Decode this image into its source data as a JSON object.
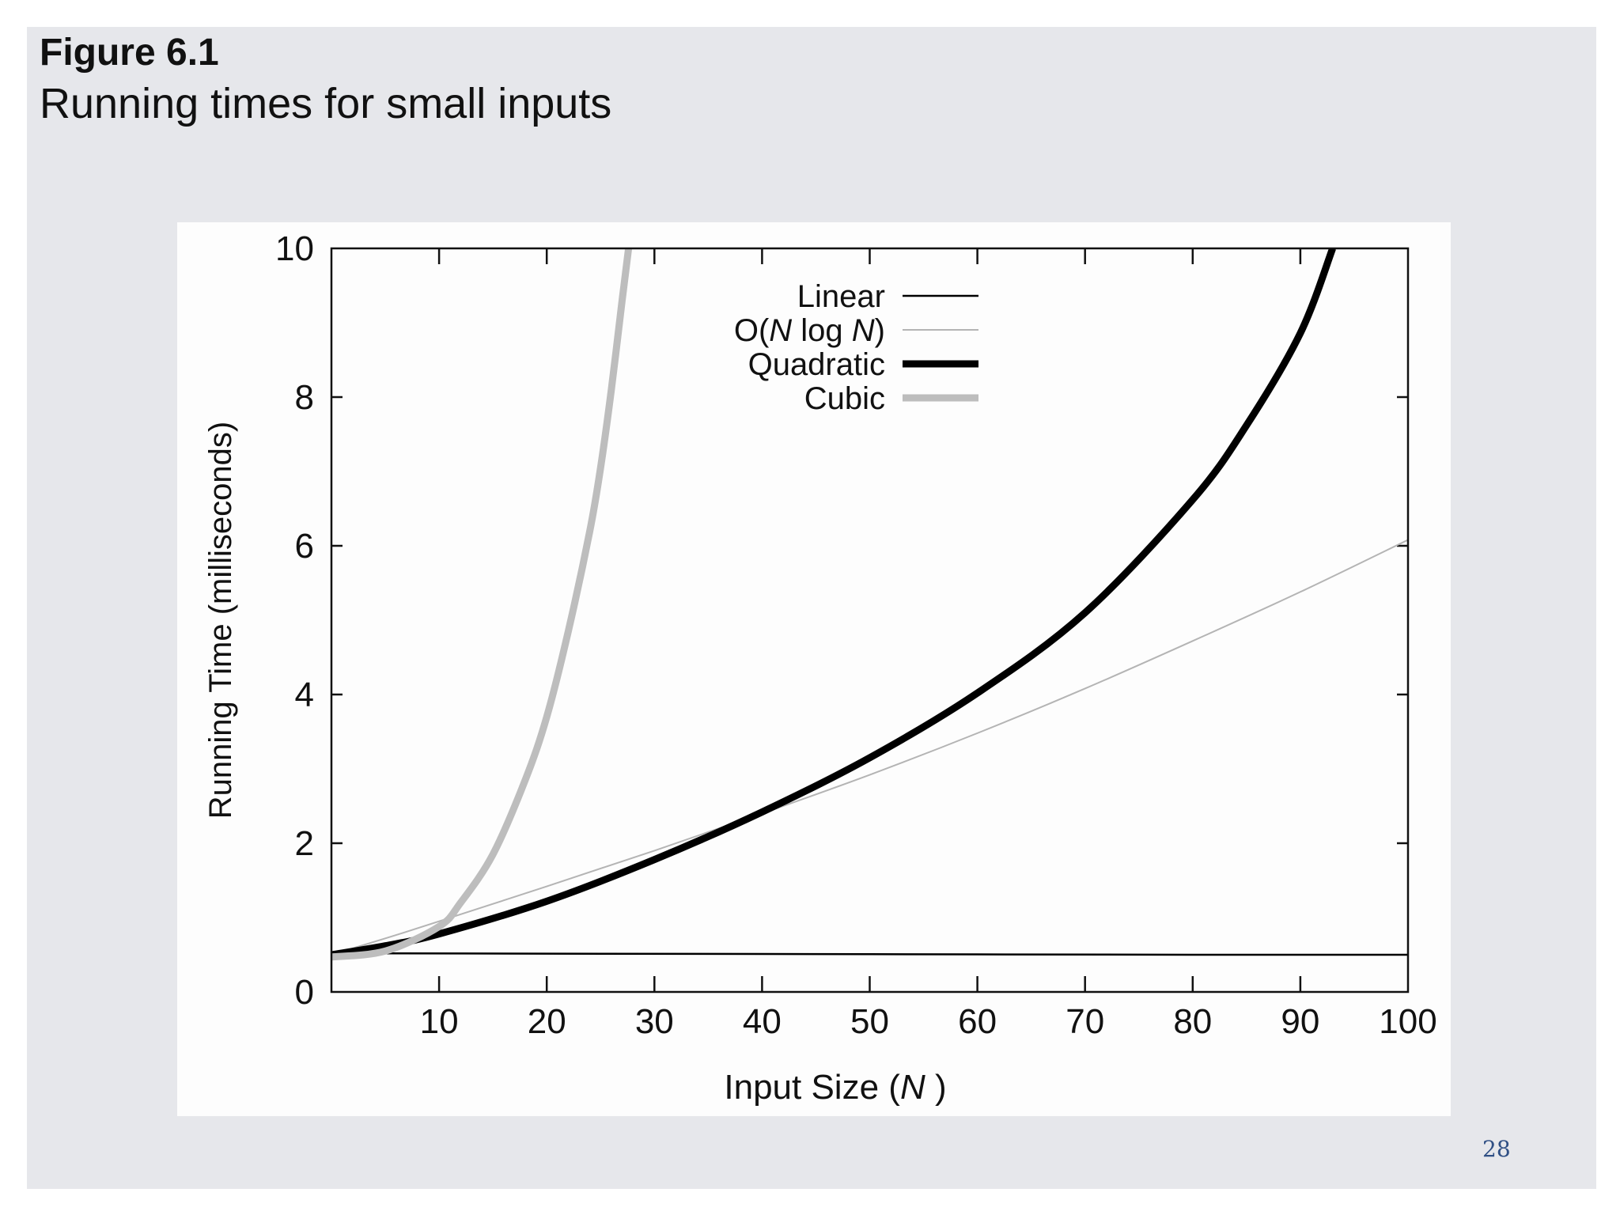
{
  "slide": {
    "figure_label": "Figure 6.1",
    "caption": "Running times for small inputs",
    "page_number": "28"
  },
  "chart_data": {
    "type": "line",
    "title": "",
    "xlabel": "Input Size (N )",
    "ylabel": "Running Time (milliseconds)",
    "xlim": [
      0,
      100
    ],
    "ylim": [
      0,
      10
    ],
    "x_ticks": [
      10,
      20,
      30,
      40,
      50,
      60,
      70,
      80,
      90,
      100
    ],
    "x_tick_labels": [
      "10",
      "20",
      "30",
      "40",
      "50",
      "60",
      "70",
      "80",
      "90",
      "100"
    ],
    "y_ticks": [
      0,
      2,
      4,
      6,
      8,
      10
    ],
    "y_tick_labels": [
      "0",
      "2",
      "4",
      "6",
      "8",
      "10"
    ],
    "grid": false,
    "legend_position": "top-center",
    "series": [
      {
        "name": "Linear",
        "color": "#000000",
        "style": "thin",
        "x": [
          0,
          20,
          40,
          60,
          80,
          100
        ],
        "y": [
          0.52,
          0.515,
          0.51,
          0.505,
          0.5,
          0.5
        ]
      },
      {
        "name": "O(N log N)",
        "color": "#b4b4b4",
        "style": "thin",
        "x": [
          0,
          5,
          10,
          20,
          30,
          40,
          50,
          60,
          70,
          80,
          90,
          100
        ],
        "y": [
          0.5,
          0.72,
          0.95,
          1.42,
          1.9,
          2.4,
          2.92,
          3.48,
          4.08,
          4.72,
          5.38,
          6.08
        ]
      },
      {
        "name": "Quadratic",
        "color": "#000000",
        "style": "thick",
        "x": [
          0,
          5,
          10,
          20,
          30,
          40,
          50,
          60,
          70,
          80,
          85,
          90,
          93
        ],
        "y": [
          0.5,
          0.62,
          0.78,
          1.22,
          1.78,
          2.42,
          3.15,
          4.02,
          5.1,
          6.62,
          7.62,
          8.86,
          10.0
        ]
      },
      {
        "name": "Cubic",
        "color": "#bdbdbd",
        "style": "thick",
        "x": [
          0,
          5,
          10,
          12,
          15,
          18,
          20,
          22,
          24,
          25,
          26,
          27,
          27.6
        ],
        "y": [
          0.47,
          0.55,
          0.88,
          1.2,
          1.85,
          2.85,
          3.7,
          4.85,
          6.2,
          7.05,
          8.1,
          9.3,
          10.0
        ]
      }
    ],
    "legend": {
      "entries": [
        "Linear",
        "O(N log N)",
        "Quadratic",
        "Cubic"
      ]
    }
  }
}
